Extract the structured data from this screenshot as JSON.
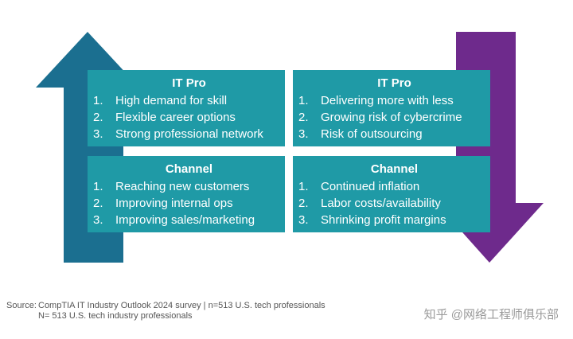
{
  "colors": {
    "up_arrow": "#1b6f90",
    "down_arrow": "#6e2a8c",
    "box_fill": "#1f9aa6",
    "box_text": "#ffffff"
  },
  "boxes": {
    "top_left": {
      "title": "IT Pro",
      "items": [
        {
          "num": "1.",
          "text": "High demand for skill"
        },
        {
          "num": "2.",
          "text": "Flexible career options"
        },
        {
          "num": "3.",
          "text": "Strong professional network"
        }
      ]
    },
    "top_right": {
      "title": "IT Pro",
      "items": [
        {
          "num": "1.",
          "text": "Delivering more with less"
        },
        {
          "num": "2.",
          "text": "Growing risk of cybercrime"
        },
        {
          "num": "3.",
          "text": "Risk of outsourcing"
        }
      ]
    },
    "bottom_left": {
      "title": "Channel",
      "items": [
        {
          "num": "1.",
          "text": "Reaching new customers"
        },
        {
          "num": "2.",
          "text": "Improving internal ops"
        },
        {
          "num": "3.",
          "text": "Improving sales/marketing"
        }
      ]
    },
    "bottom_right": {
      "title": "Channel",
      "items": [
        {
          "num": "1.",
          "text": "Continued inflation"
        },
        {
          "num": "2.",
          "text": "Labor costs/availability"
        },
        {
          "num": "3.",
          "text": "Shrinking profit margins"
        }
      ]
    }
  },
  "source": {
    "label": "Source:",
    "line1": "CompTIA IT Industry Outlook 2024 survey | n=513 U.S. tech professionals",
    "line2": "N= 513 U.S. tech industry professionals"
  },
  "watermark": "知乎 @网络工程师俱乐部"
}
